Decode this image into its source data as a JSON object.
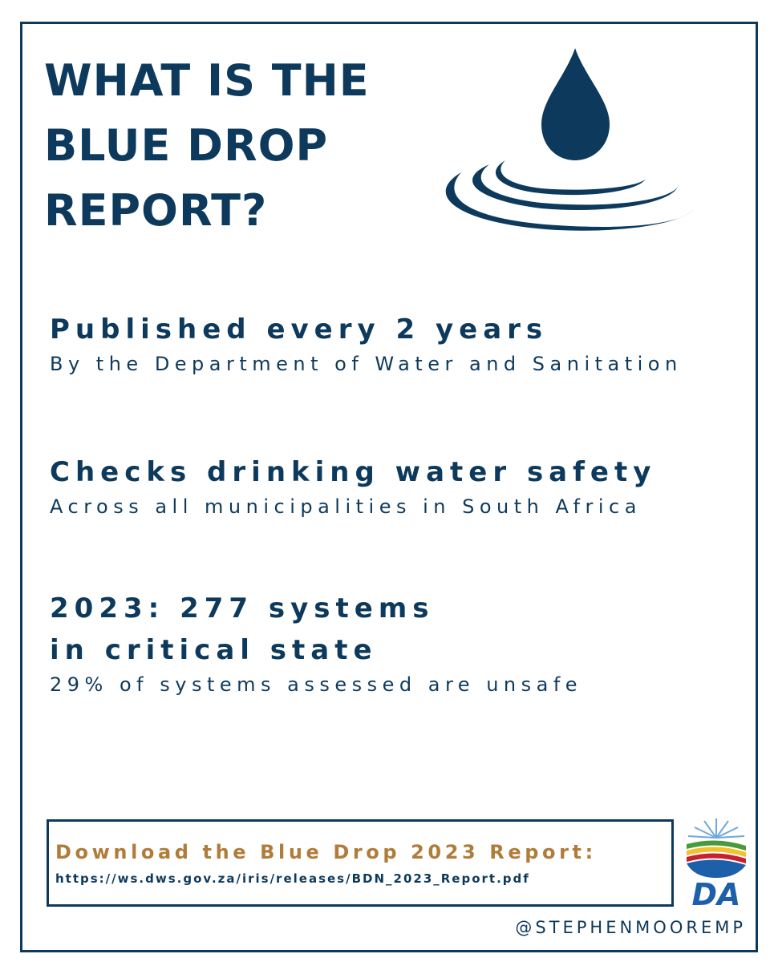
{
  "header": {
    "title_lines": [
      "WHAT IS THE",
      "BLUE DROP",
      "REPORT?"
    ]
  },
  "facts": [
    {
      "heading_lines": [
        "Published every 2 years"
      ],
      "detail": "By the Department of Water and Sanitation"
    },
    {
      "heading_lines": [
        "Checks drinking water safety"
      ],
      "detail": "Across all municipalities in South Africa"
    },
    {
      "heading_lines": [
        "2023: 277 systems",
        "in critical state"
      ],
      "detail": "29% of systems assessed are unsafe"
    }
  ],
  "download": {
    "label": "Download the Blue Drop 2023 Report:",
    "url": "https://ws.dws.gov.za/iris/releases/BDN_2023_Report.pdf"
  },
  "logo": {
    "text": "DA"
  },
  "handle": "@STEPHENMOOREMP"
}
